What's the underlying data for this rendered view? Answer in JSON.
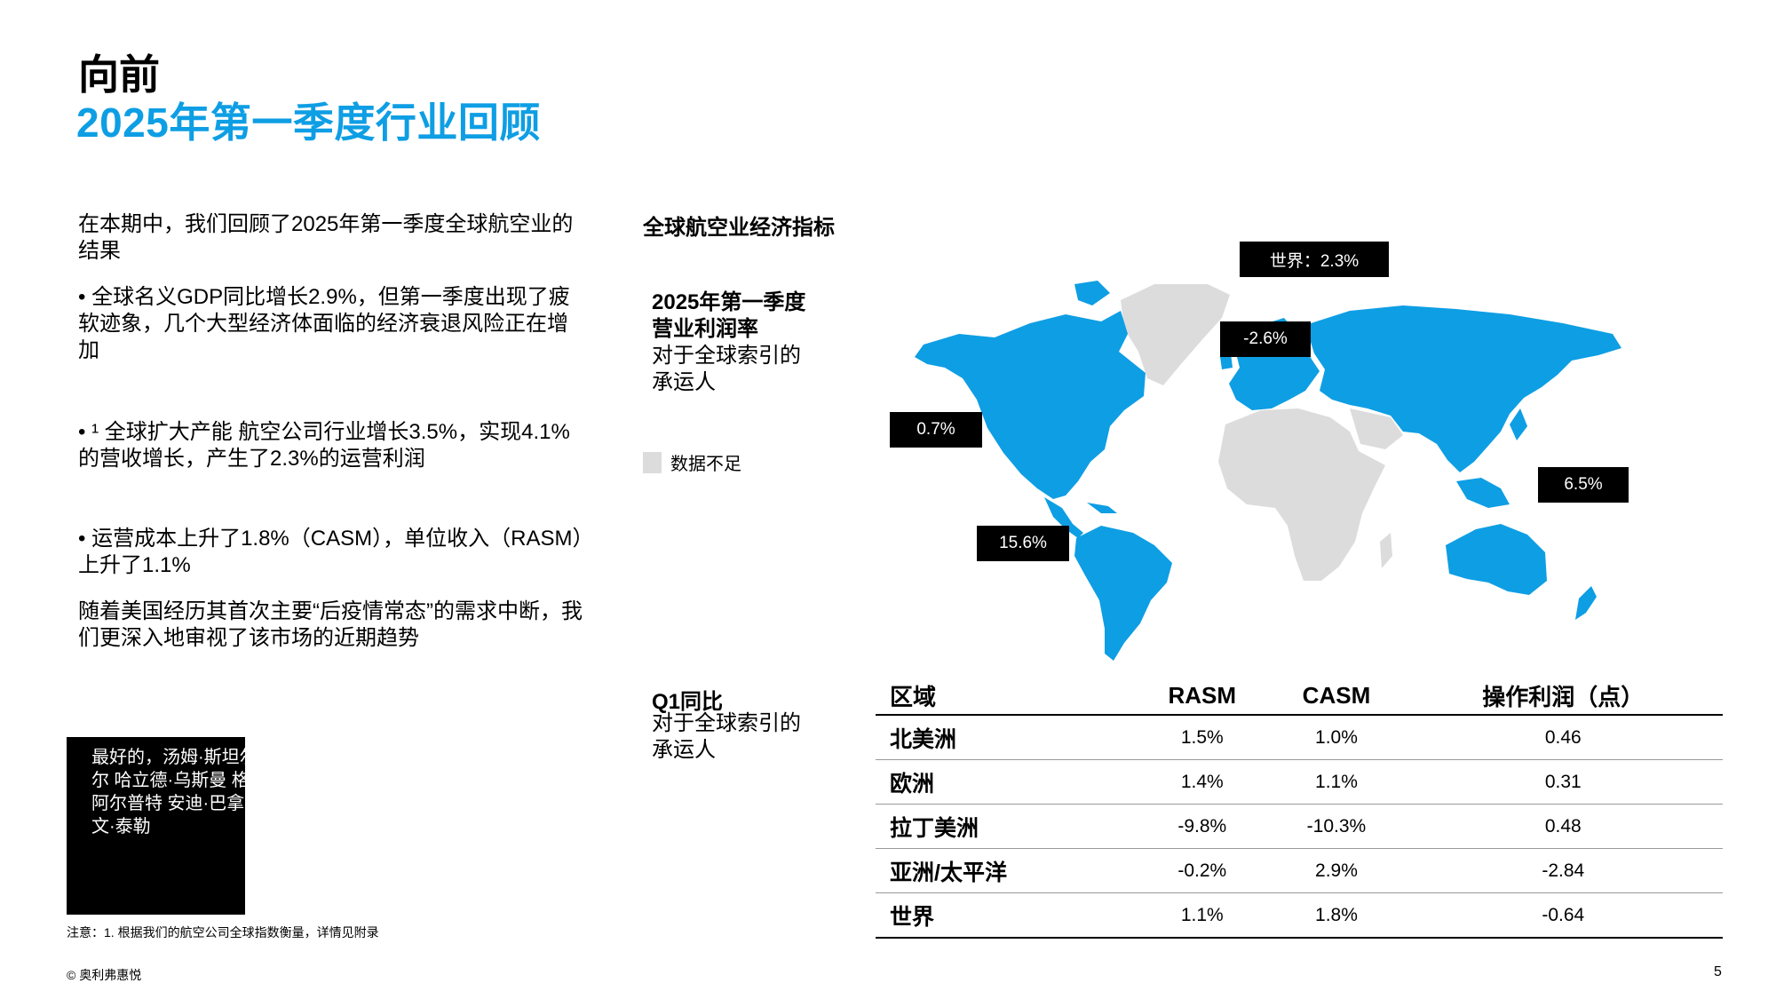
{
  "header": {
    "title": "向前",
    "subtitle": "2025年第一季度行业回顾"
  },
  "left": {
    "intro": "在本期中，我们回顾了2025年第一季度全球航空业的结果",
    "bullets": [
      "• 全球名义GDP同比增长2.9%，但第一季度出现了疲软迹象，几个大型经济体面临的经济衰退风险正在增加",
      "• ¹ 全球扩大产能 航空公司行业增长3.5%，实现4.1%的营收增长，产生了2.3%的运营利润",
      "• 运营成本上升了1.8%（CASM），单位收入（RASM）上升了1.1%"
    ],
    "closing": "随着美国经历其首次主要“后疫情常态”的需求中断，我们更深入地审视了该市场的近期趋势",
    "quote_box": "最好的，汤姆·斯坦尔纳克尔 哈立德·乌斯曼 格兰特·阿尔普特 安迪·巴拿比 欧文·泰勒",
    "note": "注意：1. 根据我们的航空公司全球指数衡量，详情见附录"
  },
  "map_section": {
    "heading": "全球航空业经济指标",
    "margin_title_line1": "2025年第一季度",
    "margin_title_line2": "营业利润率",
    "margin_sub_line1": "对于全球索引的",
    "margin_sub_line2": "承运人",
    "legend_label": "数据不足",
    "callouts": {
      "world": "世界：2.3%",
      "europe": "-2.6%",
      "north_america": "0.7%",
      "latin_america": "15.6%",
      "asia_pacific": "6.5%"
    },
    "colors": {
      "data": "#0e9ee4",
      "no_data": "#dcdcdc"
    }
  },
  "q1_section": {
    "title": "Q1同比",
    "sub_line1": "对于全球索引的",
    "sub_line2": "承运人"
  },
  "table": {
    "headers": [
      "区域",
      "RASM",
      "CASM",
      "操作利润（点）"
    ],
    "rows": [
      [
        "北美洲",
        "1.5%",
        "1.0%",
        "0.46"
      ],
      [
        "欧洲",
        "1.4%",
        "1.1%",
        "0.31"
      ],
      [
        "拉丁美洲",
        "-9.8%",
        "-10.3%",
        "0.48"
      ],
      [
        "亚洲/太平洋",
        "-0.2%",
        "2.9%",
        "-2.84"
      ],
      [
        "世界",
        "1.1%",
        "1.8%",
        "-0.64"
      ]
    ]
  },
  "footer": {
    "copyright": "© 奥利弗惠悦",
    "page": "5"
  }
}
